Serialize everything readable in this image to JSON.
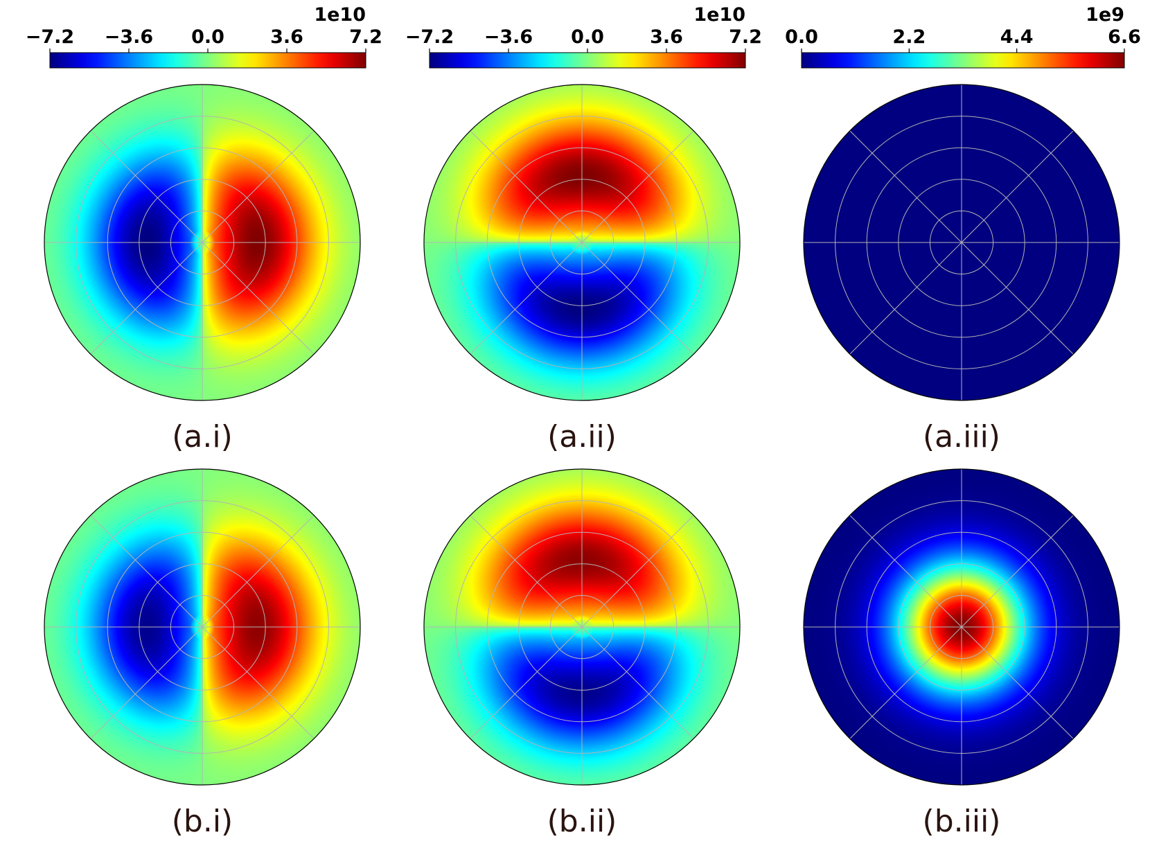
{
  "chart_data": [
    {
      "type": "heatmap",
      "projection": "polar",
      "panel_label": "(a.i)",
      "colorbar": {
        "exponent_label": "1e10",
        "tick_labels": [
          "−7.2",
          "−3.6",
          "0.0",
          "3.6",
          "7.2"
        ],
        "vmin": -7.2,
        "vmax": 7.2
      },
      "field": {
        "pattern": "dipole-x",
        "peak_value": 7.2,
        "peak_radius": 0.35,
        "width": 0.26
      }
    },
    {
      "type": "heatmap",
      "projection": "polar",
      "panel_label": "(a.ii)",
      "colorbar": {
        "exponent_label": "1e10",
        "tick_labels": [
          "−7.2",
          "−3.6",
          "0.0",
          "3.6",
          "7.2"
        ],
        "vmin": -7.2,
        "vmax": 7.2
      },
      "field": {
        "pattern": "dipole-y",
        "peak_value": 7.2,
        "peak_radius": 0.42,
        "width": 0.26
      }
    },
    {
      "type": "heatmap",
      "projection": "polar",
      "panel_label": "(a.iii)",
      "colorbar": {
        "exponent_label": "1e9",
        "tick_labels": [
          "0.0",
          "2.2",
          "4.4",
          "6.6"
        ],
        "vmin": 0.0,
        "vmax": 6.6
      },
      "field": {
        "pattern": "zero",
        "peak_value": 0.0
      }
    },
    {
      "type": "heatmap",
      "projection": "polar",
      "panel_label": "(b.i)",
      "colorbar": null,
      "field": {
        "pattern": "dipole-x",
        "peak_value": 7.0,
        "peak_radius": 0.35,
        "width": 0.26
      }
    },
    {
      "type": "heatmap",
      "projection": "polar",
      "panel_label": "(b.ii)",
      "colorbar": null,
      "field": {
        "pattern": "dipole-y",
        "peak_value": 7.0,
        "peak_radius": 0.42,
        "width": 0.26
      }
    },
    {
      "type": "heatmap",
      "projection": "polar",
      "panel_label": "(b.iii)",
      "colorbar": null,
      "field": {
        "pattern": "gaussian",
        "peak_value": 6.6,
        "width": 0.28
      }
    }
  ],
  "colors": {
    "grid": "#b4b4b4",
    "outline": "#000000",
    "label": "#2a1410"
  }
}
